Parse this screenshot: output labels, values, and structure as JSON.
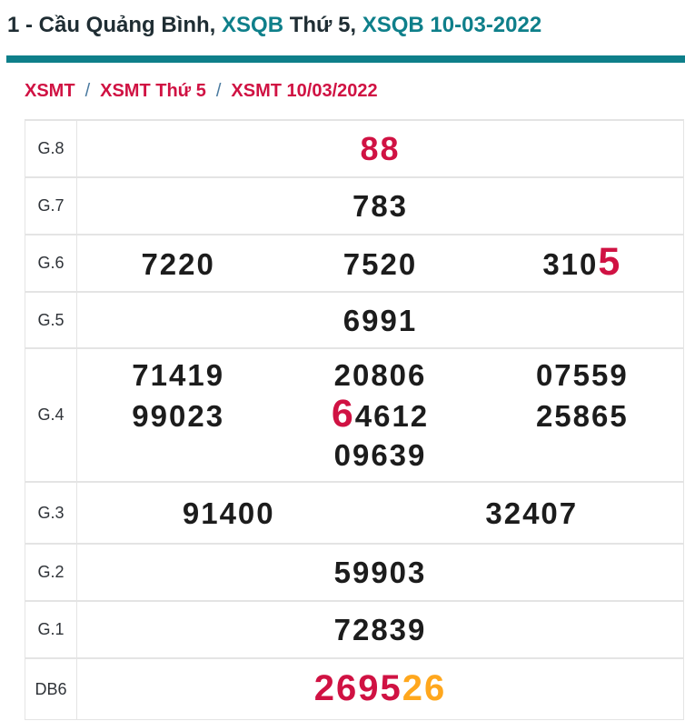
{
  "colors": {
    "teal": "#0e7f8a",
    "crimson": "#d01243",
    "orange": "#ffa71d",
    "dark_text": "#1f2d33",
    "number_text": "#1c1c1c",
    "separator_blue": "#4a7aa0",
    "border": "#e4e4e4"
  },
  "title": {
    "parts": [
      {
        "text": "1 - Cầu Quảng Bình, ",
        "style": "dark"
      },
      {
        "text": "XSQB",
        "style": "teal"
      },
      {
        "text": " Thứ 5, ",
        "style": "dark"
      },
      {
        "text": "XSQB 10-03-2022",
        "style": "teal"
      }
    ]
  },
  "breadcrumb": {
    "separator": "/",
    "items": [
      {
        "label": "XSMT"
      },
      {
        "label": "XSMT Thứ 5"
      },
      {
        "label": "XSMT 10/03/2022"
      }
    ]
  },
  "results_table": {
    "rows": [
      {
        "label": "G.8",
        "columns": 1,
        "values": [
          [
            {
              "text": "88",
              "style": "crimson"
            }
          ]
        ]
      },
      {
        "label": "G.7",
        "columns": 1,
        "values": [
          [
            {
              "text": "783",
              "style": "default"
            }
          ]
        ]
      },
      {
        "label": "G.6",
        "columns": 3,
        "values": [
          [
            {
              "text": "7220",
              "style": "default"
            }
          ],
          [
            {
              "text": "7520",
              "style": "default"
            }
          ],
          [
            {
              "text": "310",
              "style": "default"
            },
            {
              "text": "5",
              "style": "highlight"
            }
          ]
        ]
      },
      {
        "label": "G.5",
        "columns": 1,
        "values": [
          [
            {
              "text": "6991",
              "style": "default"
            }
          ]
        ]
      },
      {
        "label": "G.4",
        "columns": 3,
        "values": [
          [
            {
              "text": "71419",
              "style": "default"
            }
          ],
          [
            {
              "text": "20806",
              "style": "default"
            }
          ],
          [
            {
              "text": "07559",
              "style": "default"
            }
          ],
          [
            {
              "text": "99023",
              "style": "default"
            }
          ],
          [
            {
              "text": "6",
              "style": "highlight"
            },
            {
              "text": "4612",
              "style": "default"
            }
          ],
          [
            {
              "text": "25865",
              "style": "default"
            }
          ],
          [
            {
              "text": "09639",
              "style": "default"
            }
          ]
        ]
      },
      {
        "label": "G.3",
        "columns": 2,
        "values": [
          [
            {
              "text": "91400",
              "style": "default"
            }
          ],
          [
            {
              "text": "32407",
              "style": "default"
            }
          ]
        ]
      },
      {
        "label": "G.2",
        "columns": 1,
        "values": [
          [
            {
              "text": "59903",
              "style": "default"
            }
          ]
        ]
      },
      {
        "label": "G.1",
        "columns": 1,
        "values": [
          [
            {
              "text": "72839",
              "style": "default"
            }
          ]
        ]
      },
      {
        "label": "DB6",
        "columns": 1,
        "values": [
          [
            {
              "text": "2695",
              "style": "crimson-big"
            },
            {
              "text": "26",
              "style": "orange-big"
            }
          ]
        ]
      }
    ]
  }
}
